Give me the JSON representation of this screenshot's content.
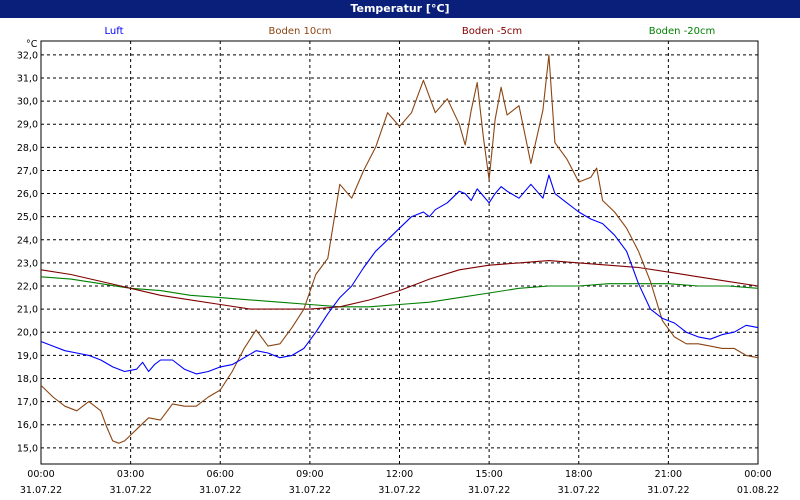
{
  "window": {
    "title": "Temperatur [°C]"
  },
  "colors": {
    "background": "#ffffff",
    "title_bar": "#0a1f7a",
    "grid": "#000000",
    "luft": "#0000ff",
    "boden_10cm": "#8b4513",
    "boden_minus5cm": "#800000",
    "boden_minus20cm": "#008000"
  },
  "chart_data": {
    "type": "line",
    "title": "Temperatur [°C]",
    "ylabel": "°C",
    "xlabel": "",
    "ylim": [
      14.3,
      32.6
    ],
    "xlim": [
      0,
      24
    ],
    "x_unit": "hours since 31.07.22 00:00",
    "grid": true,
    "legend": "top",
    "y_ticks": [
      "15,0",
      "16,0",
      "17,0",
      "18,0",
      "19,0",
      "20,0",
      "21,0",
      "22,0",
      "23,0",
      "24,0",
      "25,0",
      "26,0",
      "27,0",
      "28,0",
      "29,0",
      "30,0",
      "31,0",
      "32,0"
    ],
    "x_ticks": [
      {
        "time": "00:00",
        "date": "31.07.22"
      },
      {
        "time": "03:00",
        "date": "31.07.22"
      },
      {
        "time": "06:00",
        "date": "31.07.22"
      },
      {
        "time": "09:00",
        "date": "31.07.22"
      },
      {
        "time": "12:00",
        "date": "31.07.22"
      },
      {
        "time": "15:00",
        "date": "31.07.22"
      },
      {
        "time": "18:00",
        "date": "31.07.22"
      },
      {
        "time": "21:00",
        "date": "31.07.22"
      },
      {
        "time": "00:00",
        "date": "01.08.22"
      }
    ],
    "series": [
      {
        "name": "Luft",
        "color": "#0000ff",
        "x": [
          0,
          0.4,
          0.8,
          1.2,
          1.6,
          2.0,
          2.4,
          2.8,
          3.2,
          3.4,
          3.6,
          3.8,
          4.0,
          4.4,
          4.8,
          5.2,
          5.6,
          6.0,
          6.4,
          6.8,
          7.2,
          7.6,
          8.0,
          8.4,
          8.8,
          9.2,
          9.6,
          10.0,
          10.4,
          10.8,
          11.2,
          11.6,
          12.0,
          12.4,
          12.8,
          13.0,
          13.2,
          13.6,
          14.0,
          14.2,
          14.4,
          14.6,
          14.8,
          15.0,
          15.2,
          15.4,
          15.6,
          16.0,
          16.4,
          16.8,
          17.0,
          17.2,
          17.6,
          18.0,
          18.4,
          18.8,
          19.2,
          19.6,
          20.0,
          20.4,
          20.8,
          21.2,
          21.6,
          22.0,
          22.4,
          22.8,
          23.2,
          23.6,
          24.0
        ],
        "y": [
          19.6,
          19.4,
          19.2,
          19.1,
          19.0,
          18.8,
          18.5,
          18.3,
          18.4,
          18.7,
          18.3,
          18.6,
          18.8,
          18.8,
          18.4,
          18.2,
          18.3,
          18.5,
          18.6,
          18.9,
          19.2,
          19.1,
          18.9,
          19.0,
          19.3,
          20.0,
          20.8,
          21.5,
          22.0,
          22.8,
          23.5,
          24.0,
          24.5,
          25.0,
          25.2,
          25.0,
          25.3,
          25.6,
          26.1,
          26.0,
          25.7,
          26.2,
          25.9,
          25.6,
          26.0,
          26.3,
          26.1,
          25.8,
          26.4,
          25.8,
          26.8,
          26.0,
          25.6,
          25.2,
          24.9,
          24.7,
          24.2,
          23.5,
          22.1,
          21.0,
          20.6,
          20.4,
          20.0,
          19.8,
          19.7,
          19.9,
          20.0,
          20.3,
          20.2
        ]
      },
      {
        "name": "Boden 10cm",
        "color": "#8b4513",
        "x": [
          0,
          0.4,
          0.8,
          1.2,
          1.6,
          2.0,
          2.2,
          2.4,
          2.6,
          2.8,
          3.2,
          3.6,
          4.0,
          4.4,
          4.8,
          5.2,
          5.6,
          6.0,
          6.4,
          6.8,
          7.2,
          7.6,
          8.0,
          8.4,
          8.8,
          9.2,
          9.6,
          10.0,
          10.4,
          10.8,
          11.2,
          11.6,
          12.0,
          12.4,
          12.8,
          13.2,
          13.6,
          14.0,
          14.2,
          14.4,
          14.6,
          14.8,
          15.0,
          15.2,
          15.4,
          15.6,
          16.0,
          16.4,
          16.8,
          17.0,
          17.2,
          17.6,
          18.0,
          18.4,
          18.6,
          18.8,
          19.2,
          19.6,
          20.0,
          20.4,
          20.8,
          21.2,
          21.6,
          22.0,
          22.4,
          22.8,
          23.2,
          23.6,
          24.0
        ],
        "y": [
          17.7,
          17.2,
          16.8,
          16.6,
          17.0,
          16.6,
          15.9,
          15.3,
          15.2,
          15.3,
          15.8,
          16.3,
          16.2,
          16.9,
          16.8,
          16.8,
          17.2,
          17.5,
          18.3,
          19.3,
          20.1,
          19.4,
          19.5,
          20.2,
          21.0,
          22.5,
          23.2,
          26.4,
          25.8,
          27.0,
          28.0,
          29.5,
          28.9,
          29.5,
          30.9,
          29.5,
          30.1,
          29.0,
          28.1,
          29.6,
          30.8,
          28.5,
          26.6,
          29.2,
          30.6,
          29.4,
          29.8,
          27.3,
          29.6,
          32.0,
          28.2,
          27.5,
          26.5,
          26.7,
          27.1,
          25.7,
          25.2,
          24.5,
          23.5,
          22.2,
          20.5,
          19.8,
          19.5,
          19.5,
          19.4,
          19.3,
          19.3,
          19.0,
          18.9
        ]
      },
      {
        "name": "Boden -5cm",
        "color": "#800000",
        "x": [
          0,
          1,
          2,
          3,
          4,
          5,
          6,
          7,
          8,
          9,
          10,
          11,
          12,
          13,
          14,
          15,
          16,
          17,
          18,
          19,
          20,
          21,
          22,
          23,
          24
        ],
        "y": [
          22.7,
          22.5,
          22.2,
          21.9,
          21.6,
          21.4,
          21.2,
          21.0,
          21.0,
          21.0,
          21.1,
          21.4,
          21.8,
          22.3,
          22.7,
          22.9,
          23.0,
          23.1,
          23.0,
          22.9,
          22.8,
          22.6,
          22.4,
          22.2,
          22.0
        ]
      },
      {
        "name": "Boden -20cm",
        "color": "#008000",
        "x": [
          0,
          1,
          2,
          3,
          4,
          5,
          6,
          7,
          8,
          9,
          10,
          11,
          12,
          13,
          14,
          15,
          16,
          17,
          18,
          19,
          20,
          21,
          22,
          23,
          24
        ],
        "y": [
          22.4,
          22.3,
          22.1,
          21.9,
          21.8,
          21.6,
          21.5,
          21.4,
          21.3,
          21.2,
          21.1,
          21.1,
          21.2,
          21.3,
          21.5,
          21.7,
          21.9,
          22.0,
          22.0,
          22.1,
          22.1,
          22.1,
          22.0,
          22.0,
          21.9
        ]
      }
    ]
  }
}
